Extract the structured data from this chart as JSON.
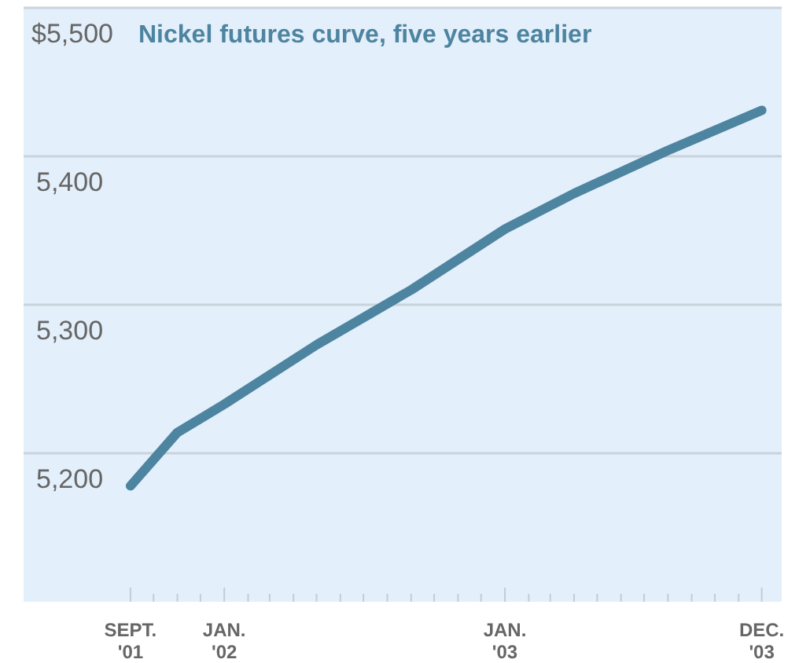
{
  "chart_data": {
    "type": "line",
    "title": "Nickel futures curve, five years earlier",
    "x": [
      "2001-09",
      "2001-11",
      "2002-01",
      "2002-05",
      "2002-09",
      "2003-01",
      "2003-04",
      "2003-08",
      "2003-12"
    ],
    "series": [
      {
        "color": "#4d84a0",
        "values": [
          5178,
          5214,
          5233,
          5273,
          5310,
          5351,
          5375,
          5404,
          5431
        ]
      }
    ],
    "xlim": [
      "2001-04-15",
      "2003-12-27"
    ],
    "xticks": [
      {
        "value": "2001-09",
        "label": "SEPT.\n'01"
      },
      {
        "value": "2001-10",
        "label": null
      },
      {
        "value": "2001-11",
        "label": null
      },
      {
        "value": "2001-12",
        "label": null
      },
      {
        "value": "2002-01",
        "label": "JAN.\n'02"
      },
      {
        "value": "2002-02",
        "label": null
      },
      {
        "value": "2002-03",
        "label": null
      },
      {
        "value": "2002-04",
        "label": null
      },
      {
        "value": "2002-05",
        "label": null
      },
      {
        "value": "2002-06",
        "label": null
      },
      {
        "value": "2002-07",
        "label": null
      },
      {
        "value": "2002-08",
        "label": null
      },
      {
        "value": "2002-09",
        "label": null
      },
      {
        "value": "2002-10",
        "label": null
      },
      {
        "value": "2002-11",
        "label": null
      },
      {
        "value": "2002-12",
        "label": null
      },
      {
        "value": "2003-01",
        "label": "JAN.\n'03"
      },
      {
        "value": "2003-02",
        "label": null
      },
      {
        "value": "2003-03",
        "label": null
      },
      {
        "value": "2003-04",
        "label": null
      },
      {
        "value": "2003-05",
        "label": null
      },
      {
        "value": "2003-06",
        "label": null
      },
      {
        "value": "2003-07",
        "label": null
      },
      {
        "value": "2003-08",
        "label": null
      },
      {
        "value": "2003-09",
        "label": null
      },
      {
        "value": "2003-10",
        "label": null
      },
      {
        "value": "2003-11",
        "label": null
      },
      {
        "value": "2003-12",
        "label": "DEC.\n'03"
      }
    ],
    "ylim": [
      5100,
      5500
    ],
    "yticks": [
      {
        "value": 5200,
        "label": "5,200"
      },
      {
        "value": 5300,
        "label": "5,300"
      },
      {
        "value": 5400,
        "label": "5,400"
      },
      {
        "value": 5500,
        "label": "$5,500"
      }
    ],
    "grid": "y",
    "marker": "none",
    "line_style": "solid"
  }
}
